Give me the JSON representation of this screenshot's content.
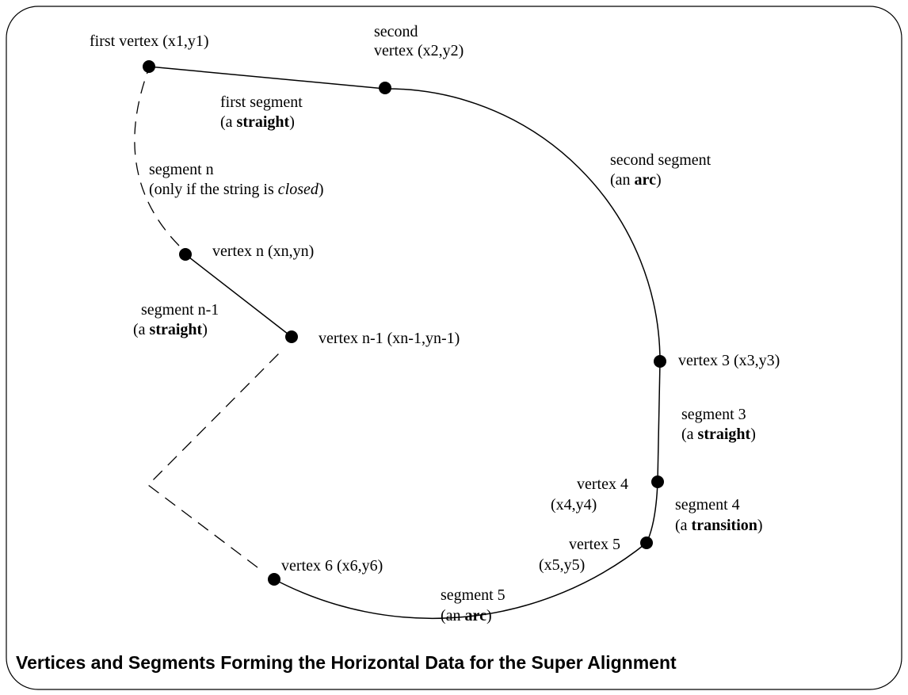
{
  "labels": [
    {
      "lines": [
        [
          "first vertex (x1,y1)"
        ]
      ]
    },
    {
      "lines": [
        [
          "second"
        ],
        [
          "vertex (x2,y2)"
        ]
      ]
    },
    {
      "lines": [
        [
          "first segment"
        ],
        [
          "(a ",
          "straight",
          ")"
        ]
      ]
    },
    {
      "lines": [
        [
          "second segment"
        ],
        [
          "(an ",
          "arc",
          ")"
        ]
      ]
    },
    {
      "lines": [
        [
          "segment n"
        ],
        [
          "(only if the string is ",
          "closed",
          ")"
        ]
      ]
    },
    {
      "lines": [
        [
          "vertex n (xn,yn)"
        ]
      ]
    },
    {
      "lines": [
        [
          "segment n-1"
        ],
        [
          "(a ",
          "straight",
          ")"
        ]
      ]
    },
    {
      "lines": [
        [
          "vertex n-1 (xn-1,yn-1)"
        ]
      ]
    },
    {
      "lines": [
        [
          "vertex 3 (x3,y3)"
        ]
      ]
    },
    {
      "lines": [
        [
          "segment 3"
        ],
        [
          "(a ",
          "straight",
          ")"
        ]
      ]
    },
    {
      "lines": [
        [
          "vertex 4"
        ],
        [
          "(x4,y4)"
        ]
      ]
    },
    {
      "lines": [
        [
          "segment 4"
        ],
        [
          "(a ",
          "transition",
          ")"
        ]
      ]
    },
    {
      "lines": [
        [
          "vertex 5"
        ],
        [
          "(x5,y5)"
        ]
      ]
    },
    {
      "lines": [
        [
          "vertex 6 (x6,y6)"
        ]
      ]
    },
    {
      "lines": [
        [
          "segment 5"
        ],
        [
          "(an ",
          "arc",
          ")"
        ]
      ]
    }
  ],
  "title": "Vertices and Segments Forming the Horizontal Data for the Super Alignment"
}
